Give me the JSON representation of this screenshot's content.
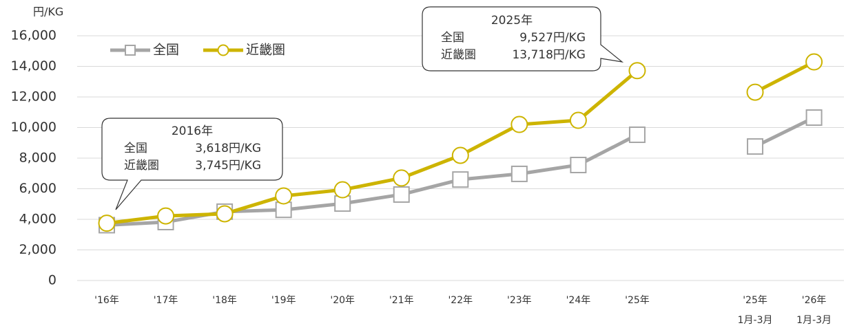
{
  "chart_data": {
    "type": "line",
    "y_unit_label": "円/KG",
    "categories": [
      "'16年",
      "'17年",
      "'18年",
      "'19年",
      "'20年",
      "'21年",
      "'22年",
      "'23年",
      "'24年",
      "'25年",
      null,
      "'25年\n1月-3月",
      "'26年\n1月-3月"
    ],
    "series": [
      {
        "name": "全国",
        "color": "#a5a5a5",
        "marker": "square",
        "values": [
          3618,
          3820,
          4500,
          4620,
          5030,
          5620,
          6600,
          6970,
          7550,
          9527,
          null,
          8760,
          10650
        ]
      },
      {
        "name": "近畿圏",
        "color": "#cdb400",
        "marker": "circle",
        "values": [
          3745,
          4220,
          4360,
          5530,
          5930,
          6700,
          8180,
          10200,
          10470,
          13718,
          null,
          12310,
          14290
        ]
      }
    ],
    "ylim": [
      0,
      16000
    ],
    "yticks": [
      0,
      {
        "value": 2000,
        "label": "2,000"
      },
      {
        "value": 4000,
        "label": "4,000"
      },
      {
        "value": 6000,
        "label": "6,000"
      },
      {
        "value": 8000,
        "label": "8,000"
      },
      {
        "value": 10000,
        "label": "10,000"
      },
      {
        "value": 12000,
        "label": "12,000"
      },
      {
        "value": 14000,
        "label": "14,000"
      },
      {
        "value": 16000,
        "label": "16,000"
      }
    ],
    "grid": true,
    "legend": "top-left",
    "annotations": [
      {
        "title": "2016年",
        "rows": [
          [
            "全国",
            "3,618円/KG"
          ],
          [
            "近畿圏",
            "3,745円/KG"
          ]
        ]
      },
      {
        "title": "2025年",
        "rows": [
          [
            "全国",
            "9,527円/KG"
          ],
          [
            "近畿圏",
            "13,718円/KG"
          ]
        ]
      }
    ]
  }
}
